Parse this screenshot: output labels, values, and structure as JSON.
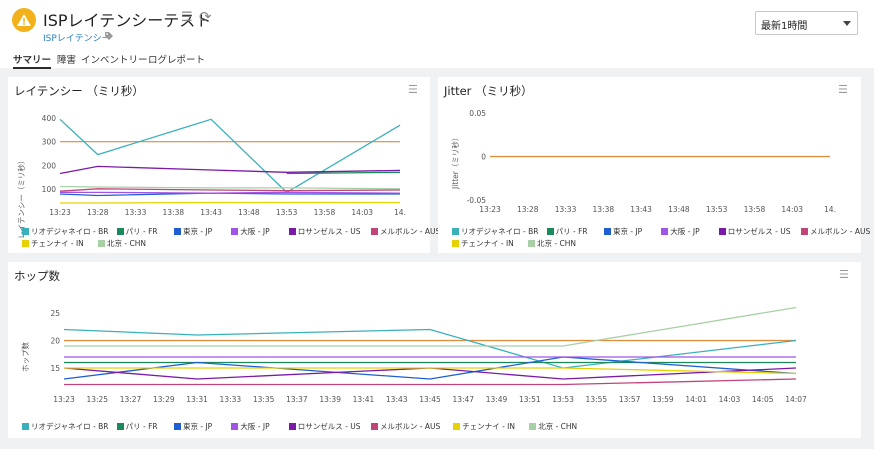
{
  "header": {
    "title": "ISPレイテンシーテスト",
    "breadcrumb": "ISPレイテンシー",
    "time_range": "最新1時間"
  },
  "tabs": [
    {
      "label": "サマリー",
      "active": true
    },
    {
      "label": "障害"
    },
    {
      "label": "インベントリー"
    },
    {
      "label": "ログレポート"
    }
  ],
  "colors": {
    "rio": "#3ab0bd",
    "paris": "#1a8a5a",
    "tokyo": "#1f5fd1",
    "osaka": "#a055e6",
    "la": "#7b1aa8",
    "melbourne": "#c2457a",
    "chennai": "#e6d200",
    "beijing": "#a8cfa6",
    "threshold": "#e08a3a"
  },
  "latency": {
    "title": "レイテンシー （ミリ秒）",
    "ylabel": "レイテンシー（ミリ秒）",
    "yticks": [
      "400",
      "300",
      "200",
      "100"
    ],
    "xticks": [
      "13:23",
      "13:28",
      "13:33",
      "13:38",
      "13:43",
      "13:48",
      "13:53",
      "13:58",
      "14:03",
      "14."
    ]
  },
  "jitter": {
    "title": "Jitter （ミリ秒）",
    "ylabel": "Jitter（ミリ秒）",
    "yticks": [
      "0.05",
      "0",
      "-0.05"
    ],
    "xticks": [
      "13:23",
      "13:28",
      "13:33",
      "13:38",
      "13:43",
      "13:48",
      "13:53",
      "13:58",
      "14:03",
      "14."
    ]
  },
  "hops": {
    "title": "ホップ数",
    "ylabel": "ホップ数",
    "yticks": [
      "25",
      "20",
      "15"
    ],
    "xticks": [
      "13:23",
      "13:25",
      "13:27",
      "13:29",
      "13:31",
      "13:33",
      "13:35",
      "13:37",
      "13:39",
      "13:41",
      "13:43",
      "13:45",
      "13:47",
      "13:49",
      "13:51",
      "13:53",
      "13:55",
      "13:57",
      "13:59",
      "14:01",
      "14:03",
      "14:05",
      "14:07"
    ]
  },
  "legend_small": [
    {
      "label": "リオデジャネイロ - BR",
      "color": "#3ab0bd"
    },
    {
      "label": "パリ - FR",
      "color": "#1a8a5a"
    },
    {
      "label": "東京 - JP",
      "color": "#1f5fd1"
    },
    {
      "label": "大阪 - JP",
      "color": "#a055e6"
    },
    {
      "label": "ロサンゼルス - US",
      "color": "#7b1aa8"
    },
    {
      "label": "メルボルン - AUS",
      "color": "#c2457a"
    },
    {
      "label": "チェンナイ - IN",
      "color": "#e6d200"
    },
    {
      "label": "北京 - CHN",
      "color": "#a8cfa6"
    }
  ],
  "chart_data": [
    {
      "type": "line",
      "title": "レイテンシー （ミリ秒）",
      "ylabel": "レイテンシー（ミリ秒）",
      "ylim": [
        40,
        430
      ],
      "x": [
        "13:23",
        "13:28",
        "13:33",
        "13:38",
        "13:43",
        "13:48",
        "13:53",
        "13:58",
        "14:03",
        "14:07"
      ],
      "threshold": 300,
      "series": [
        {
          "name": "リオデジャネイロ - BR",
          "values": [
            395,
            245,
            null,
            null,
            395,
            null,
            85,
            null,
            null,
            370
          ]
        },
        {
          "name": "パリ - FR",
          "values": [
            null,
            null,
            null,
            null,
            null,
            null,
            165,
            null,
            null,
            170
          ]
        },
        {
          "name": "東京 - JP",
          "values": [
            78,
            72,
            null,
            null,
            82,
            null,
            78,
            null,
            null,
            78
          ]
        },
        {
          "name": "大阪 - JP",
          "values": [
            85,
            85,
            null,
            null,
            82,
            null,
            85,
            null,
            null,
            82
          ]
        },
        {
          "name": "ロサンゼルス - US",
          "values": [
            165,
            195,
            null,
            null,
            180,
            null,
            170,
            null,
            null,
            178
          ]
        },
        {
          "name": "メルボルン - AUS",
          "values": [
            90,
            100,
            null,
            null,
            95,
            null,
            92,
            null,
            null,
            95
          ]
        },
        {
          "name": "チェンナイ - IN",
          "values": [
            40,
            40,
            null,
            null,
            42,
            null,
            42,
            null,
            null,
            42
          ]
        },
        {
          "name": "北京 - CHN",
          "values": [
            110,
            108,
            null,
            null,
            104,
            null,
            104,
            null,
            null,
            100
          ]
        }
      ]
    },
    {
      "type": "line",
      "title": "Jitter （ミリ秒）",
      "ylabel": "Jitter（ミリ秒）",
      "ylim": [
        -0.05,
        0.05
      ],
      "x": [
        "13:23",
        "14:07"
      ],
      "series": [
        {
          "name": "all",
          "values": [
            0,
            0
          ]
        }
      ]
    },
    {
      "type": "line",
      "title": "ホップ数",
      "ylabel": "ホップ数",
      "ylim": [
        11,
        27
      ],
      "x": [
        "13:23",
        "13:31",
        "13:45",
        "13:53",
        "14:07"
      ],
      "threshold": 20,
      "series": [
        {
          "name": "リオデジャネイロ - BR",
          "values": [
            22,
            21,
            22,
            15,
            20
          ]
        },
        {
          "name": "パリ - FR",
          "values": [
            16,
            16,
            16,
            16,
            16
          ]
        },
        {
          "name": "東京 - JP",
          "values": [
            13,
            16,
            13,
            17,
            14
          ]
        },
        {
          "name": "大阪 - JP",
          "values": [
            17,
            17,
            17,
            17,
            17
          ]
        },
        {
          "name": "ロサンゼルス - US",
          "values": [
            15,
            13,
            15,
            13,
            15
          ]
        },
        {
          "name": "メルボルン - AUS",
          "values": [
            12,
            12,
            12,
            12,
            13
          ]
        },
        {
          "name": "チェンナイ - IN",
          "values": [
            15,
            15,
            15,
            15,
            14
          ]
        },
        {
          "name": "北京 - CHN",
          "values": [
            19,
            19,
            19,
            19,
            26
          ]
        }
      ]
    }
  ]
}
